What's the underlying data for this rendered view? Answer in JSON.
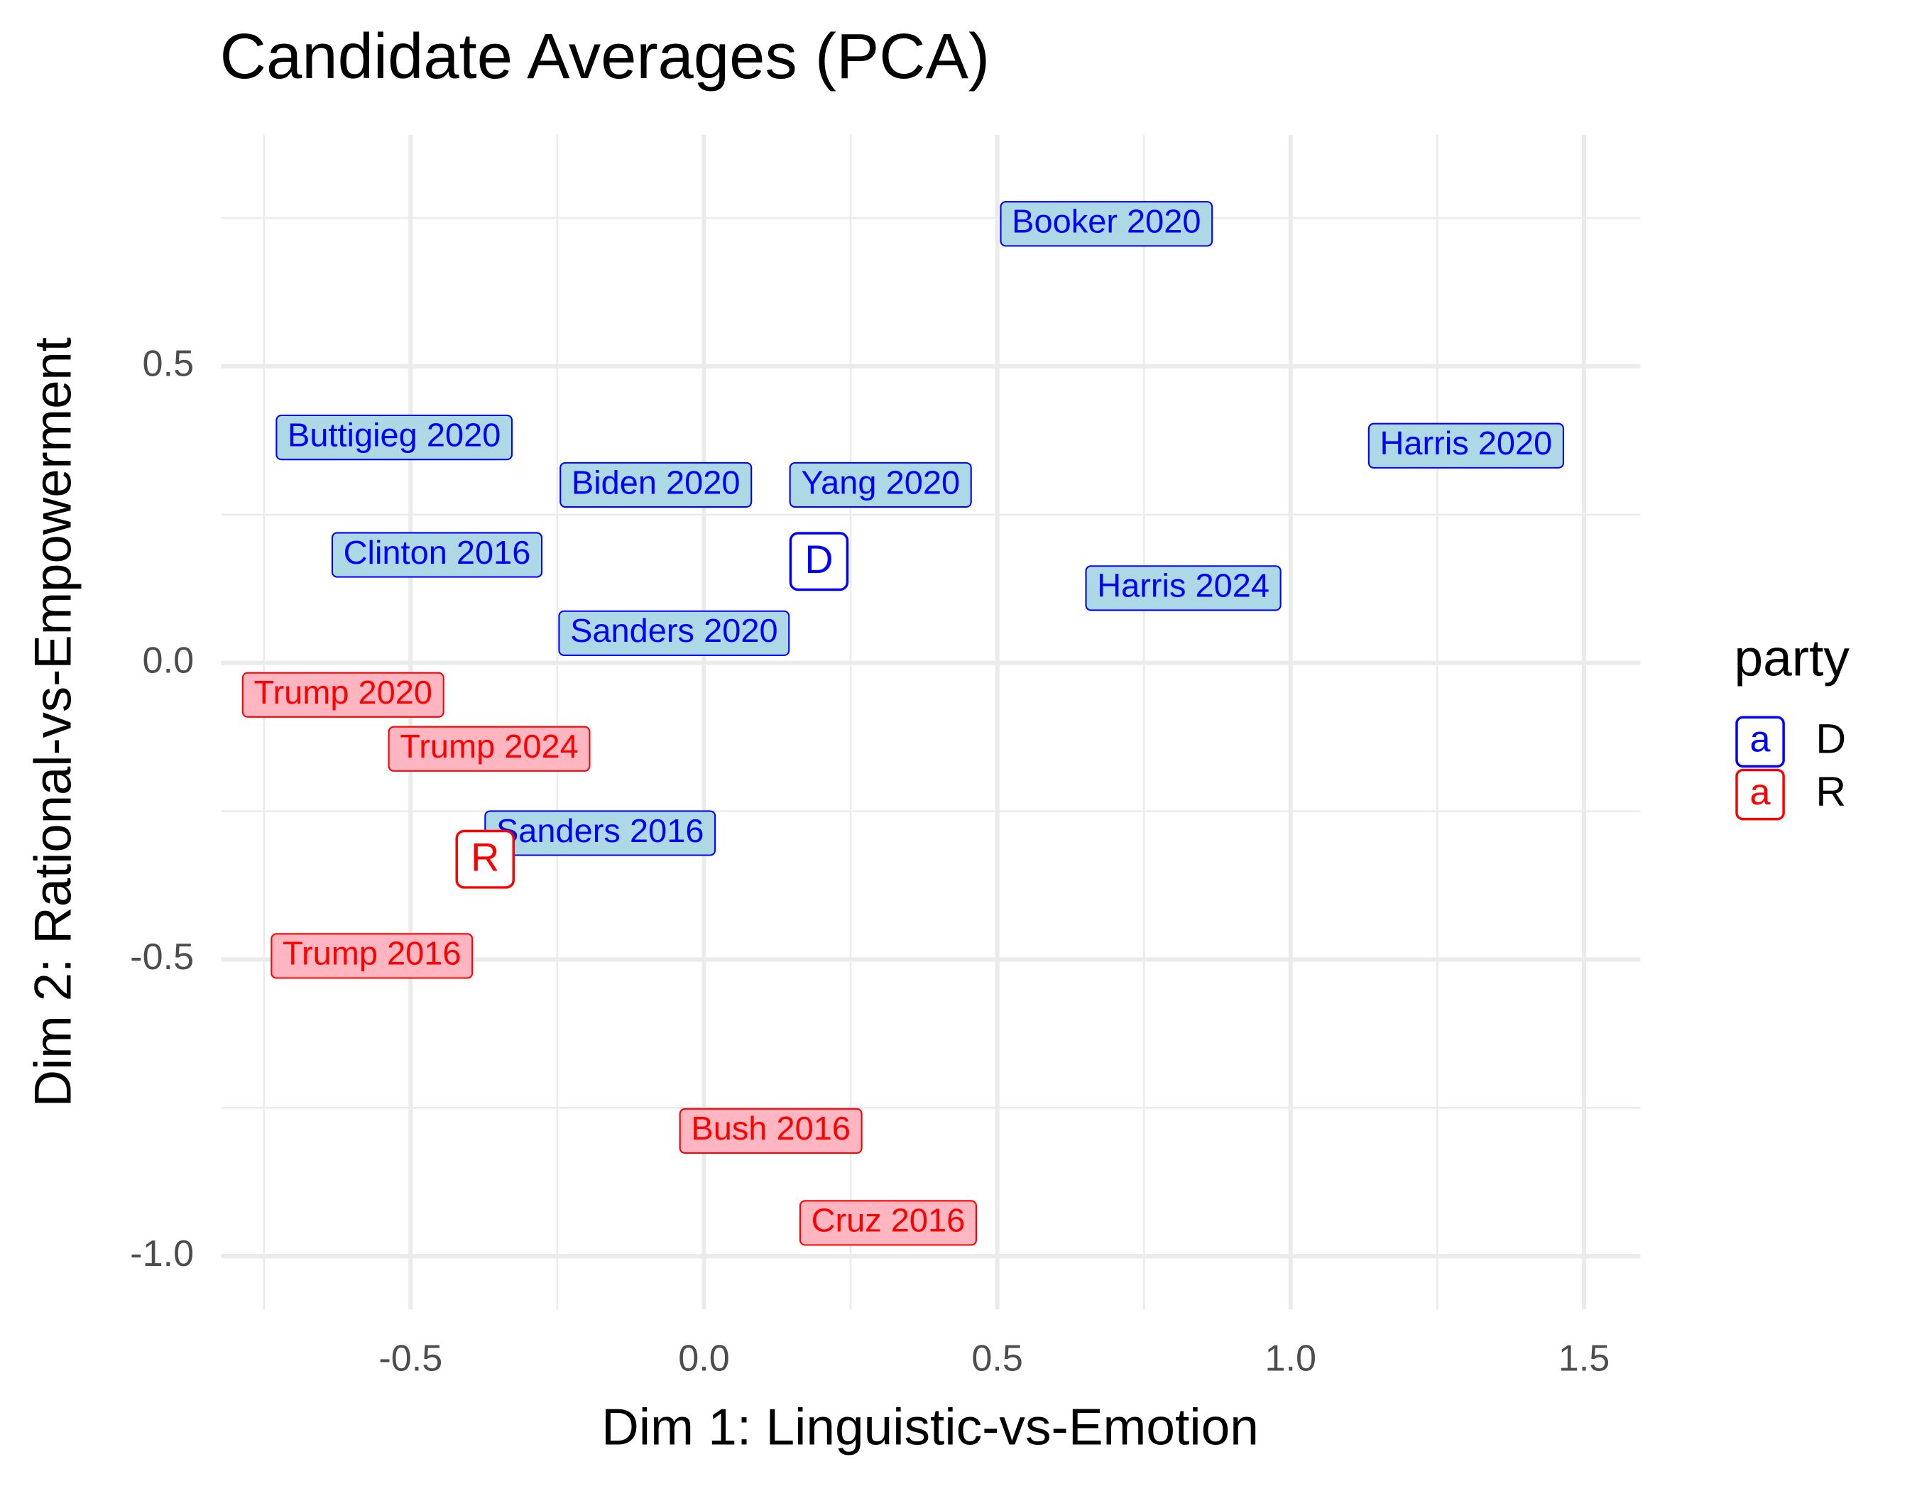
{
  "chart_data": {
    "type": "label-scatter",
    "title": "Candidate Averages (PCA)",
    "x_label": "Dim 1: Linguistic-vs-Emotion",
    "y_label": "Dim 2: Rational-vs-Empowerment",
    "xlim": [
      -0.823,
      1.596
    ],
    "ylim": [
      -1.09,
      0.89
    ],
    "xticks": [
      -0.5,
      {
        "value": 0,
        "label": "0.0"
      },
      0.5,
      {
        "value": 1,
        "label": "1.0"
      },
      1.5
    ],
    "yticks": [
      {
        "value": -1,
        "label": "-1.0"
      },
      -0.5,
      {
        "value": 0,
        "label": "0.0"
      },
      0.5
    ],
    "minor_xticks": [
      -0.75,
      -0.25,
      0.25,
      0.75,
      1.25
    ],
    "minor_yticks": [
      -0.75,
      -0.25,
      0.25,
      0.75
    ],
    "grid": true,
    "legend_title": "party",
    "legend_key_glyph": "a",
    "legend_position": "right",
    "series": [
      {
        "name": "D",
        "color": "#0000ff",
        "fill": "#add8e6",
        "labels": [
          "Booker 2020",
          "Buttigieg 2020",
          "Harris 2020",
          "Biden 2020",
          "Yang 2020",
          "Clinton 2016",
          "Harris 2024",
          "Sanders 2020",
          "Sanders 2016"
        ],
        "x": [
          0.686,
          -0.528,
          1.299,
          -0.082,
          0.301,
          -0.455,
          0.817,
          -0.051,
          -0.177
        ],
        "y": [
          0.74,
          0.38,
          0.366,
          0.3,
          0.3,
          0.182,
          0.126,
          0.05,
          -0.287
        ]
      },
      {
        "name": "R",
        "color": "#ff0000",
        "fill": "#ffb6c1",
        "labels": [
          "Trump 2020",
          "Trump 2024",
          "Trump 2016",
          "Bush 2016",
          "Cruz 2016"
        ],
        "x": [
          -0.615,
          -0.366,
          -0.566,
          0.114,
          0.314
        ],
        "y": [
          -0.054,
          -0.145,
          -0.494,
          -0.789,
          -0.944
        ]
      }
    ],
    "party_means": [
      {
        "name": "D",
        "x": 0.196,
        "y": 0.171
      },
      {
        "name": "R",
        "x": -0.373,
        "y": -0.331
      }
    ]
  }
}
